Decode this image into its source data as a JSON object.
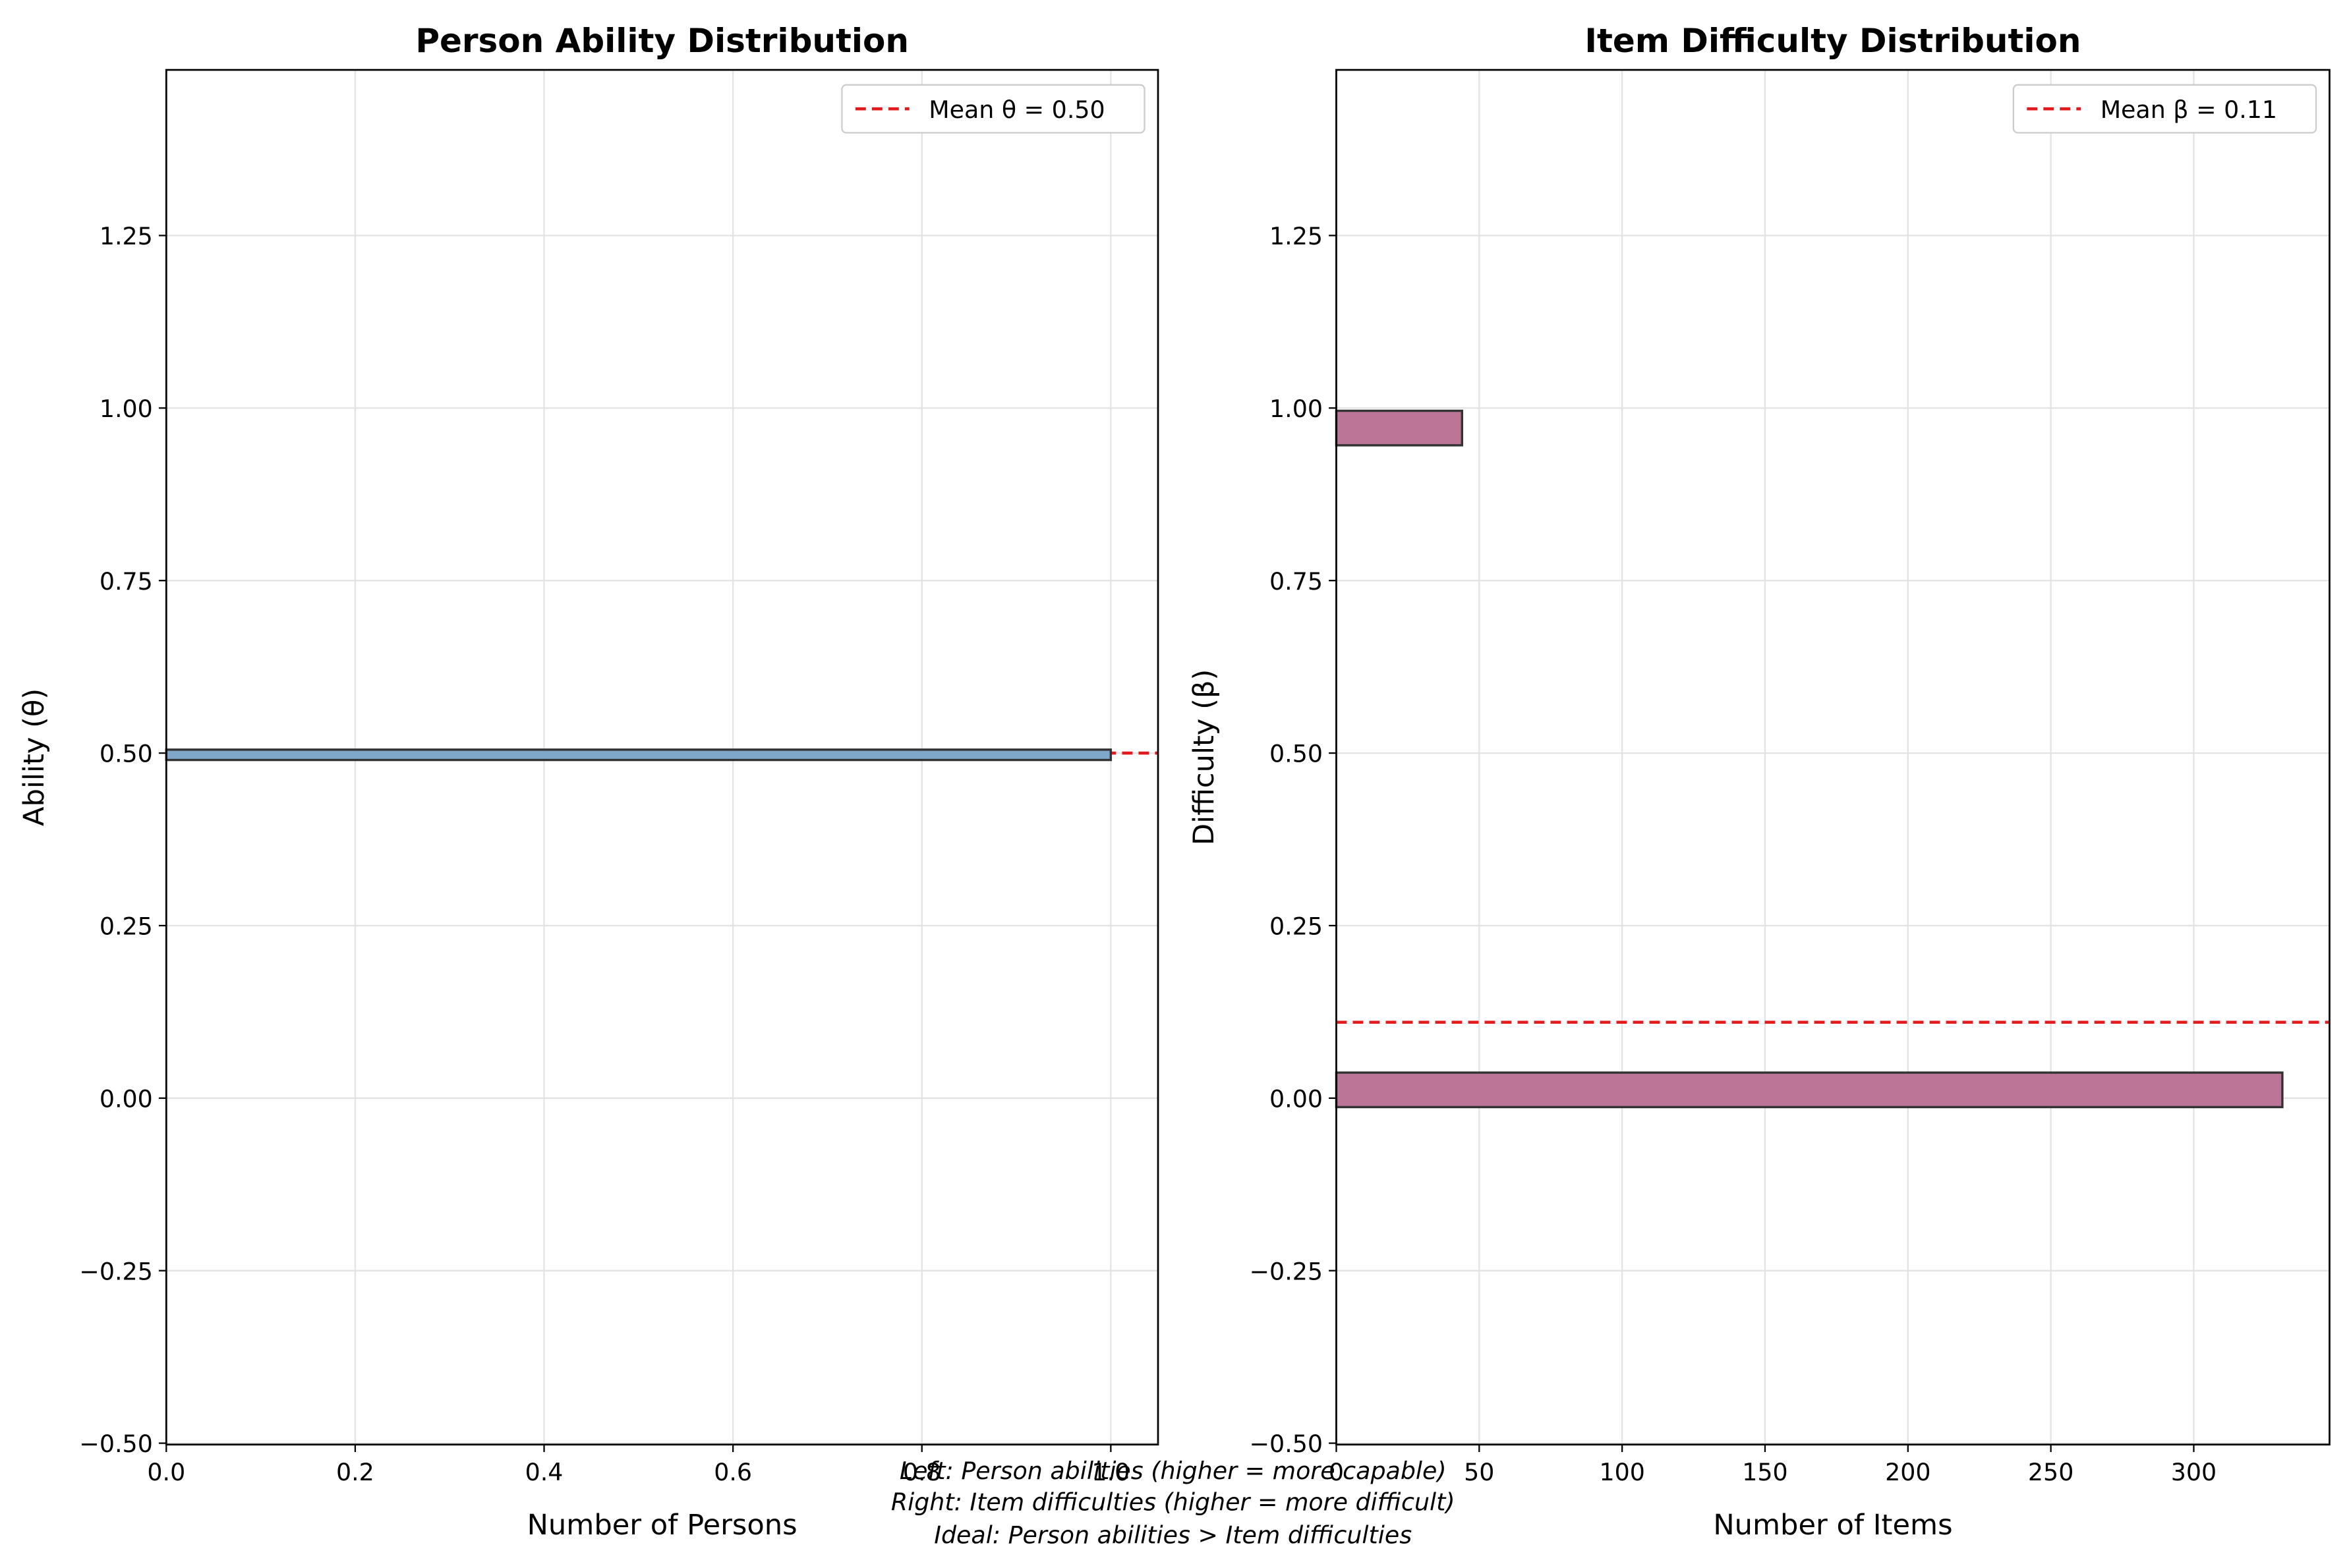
{
  "chart_data": [
    {
      "type": "histogram",
      "orientation": "horizontal",
      "title": "Person Ability Distribution",
      "xlabel": "Number of Persons",
      "ylabel": "Ability (θ)",
      "bins": [
        0.49,
        0.505
      ],
      "values": [
        1
      ],
      "color": "#7fa7c9",
      "xlim": [
        0,
        1.05
      ],
      "xticks": [
        {
          "value": 0,
          "label": "0.0"
        },
        {
          "value": 0.2,
          "label": "0.2"
        },
        {
          "value": 0.4,
          "label": "0.4"
        },
        {
          "value": 0.6,
          "label": "0.6"
        },
        {
          "value": 0.8,
          "label": "0.8"
        },
        {
          "value": 1,
          "label": "1.0"
        }
      ],
      "ylim": [
        -0.502,
        1.49
      ],
      "yticks": [
        {
          "value": -0.5,
          "label": "−0.50"
        },
        {
          "value": -0.25,
          "label": "−0.25"
        },
        {
          "value": 0,
          "label": "0.00"
        },
        {
          "value": 0.25,
          "label": "0.25"
        },
        {
          "value": 0.5,
          "label": "0.50"
        },
        {
          "value": 0.75,
          "label": "0.75"
        },
        {
          "value": 1,
          "label": "1.00"
        },
        {
          "value": 1.25,
          "label": "1.25"
        }
      ],
      "grid": true,
      "legend": "upper right",
      "mean_line": {
        "value": 0.5,
        "label": "Mean θ = 0.50",
        "color": "#e31a1c"
      }
    },
    {
      "type": "histogram",
      "orientation": "horizontal",
      "title": "Item Difficulty Distribution",
      "xlabel": "Number of Items",
      "ylabel": "Difficulty (β)",
      "bins": [
        -0.013,
        0.037,
        0.088,
        0.138,
        0.189,
        0.239,
        0.29,
        0.34,
        0.391,
        0.441,
        0.492,
        0.542,
        0.592,
        0.643,
        0.693,
        0.744,
        0.794,
        0.845,
        0.895,
        0.946,
        0.996
      ],
      "values": [
        331,
        0,
        0,
        0,
        0,
        0,
        0,
        0,
        0,
        0,
        0,
        0,
        0,
        0,
        0,
        0,
        0,
        0,
        0,
        44
      ],
      "color": "#bd7597",
      "xlim": [
        0,
        347.5
      ],
      "xticks": [
        0,
        50,
        100,
        150,
        200,
        250,
        300
      ],
      "ylim": [
        -0.502,
        1.49
      ],
      "yticks": [
        {
          "value": -0.5,
          "label": "−0.50"
        },
        {
          "value": -0.25,
          "label": "−0.25"
        },
        {
          "value": 0,
          "label": "0.00"
        },
        {
          "value": 0.25,
          "label": "0.25"
        },
        {
          "value": 0.5,
          "label": "0.50"
        },
        {
          "value": 0.75,
          "label": "0.75"
        },
        {
          "value": 1,
          "label": "1.00"
        },
        {
          "value": 1.25,
          "label": "1.25"
        }
      ],
      "grid": true,
      "legend": "upper right",
      "mean_line": {
        "value": 0.11,
        "label": "Mean β = 0.11",
        "color": "#e31a1c"
      }
    }
  ],
  "caption": [
    "Left: Person abilities (higher = more capable)",
    "Right: Item difficulties (higher = more difficult)",
    "Ideal: Person abilities > Item difficulties"
  ]
}
